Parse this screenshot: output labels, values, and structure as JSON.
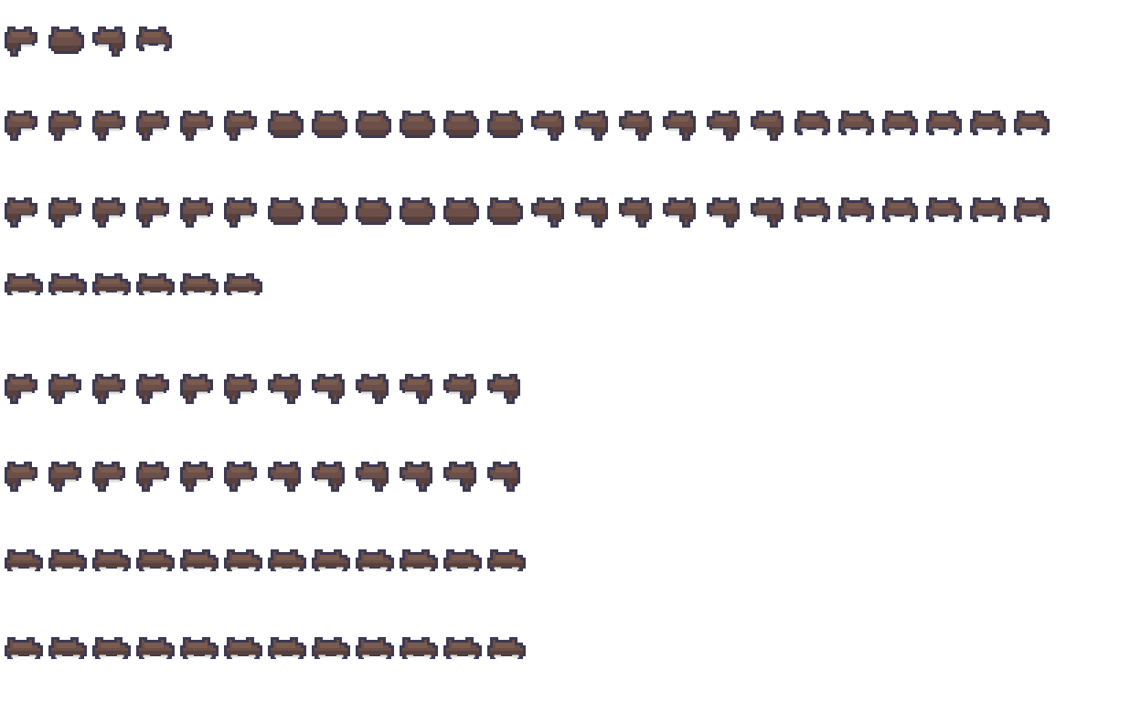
{
  "sprite_sheet": {
    "colors": {
      "outline": "#3d3a52",
      "hair": "#6b4f48",
      "highlight": "#7a5b4f",
      "shade": "#58413c",
      "skin_gap": "#e2e0de"
    },
    "rows": [
      [
        "left",
        "back",
        "right",
        "front"
      ],
      [
        "left",
        "left",
        "left",
        "left",
        "left",
        "left",
        "back",
        "back",
        "back",
        "back",
        "back",
        "back",
        "right",
        "right",
        "right",
        "right",
        "right",
        "right",
        "front",
        "front",
        "front",
        "front",
        "front",
        "front"
      ],
      [
        "left",
        "left",
        "left",
        "left",
        "left",
        "left",
        "back",
        "back",
        "back",
        "back",
        "back",
        "back",
        "right",
        "right",
        "right",
        "right",
        "right",
        "right",
        "front",
        "front",
        "front",
        "front",
        "front",
        "front"
      ],
      [
        "flat",
        "flat",
        "flat",
        "flat",
        "flat",
        "flat"
      ],
      [
        "left",
        "left",
        "left",
        "left",
        "left",
        "left",
        "right",
        "right",
        "right",
        "right",
        "right",
        "right"
      ],
      [
        "left",
        "left",
        "left",
        "left",
        "left",
        "left",
        "right",
        "right",
        "right",
        "right",
        "right",
        "right"
      ],
      [
        "flat",
        "flat",
        "flat",
        "flat",
        "flat",
        "flat",
        "flat",
        "flat",
        "flat",
        "flat",
        "flat",
        "flat"
      ],
      [
        "flat",
        "flat",
        "flat",
        "flat",
        "flat",
        "flat",
        "flat",
        "flat",
        "flat",
        "flat",
        "flat",
        "flat"
      ]
    ]
  }
}
